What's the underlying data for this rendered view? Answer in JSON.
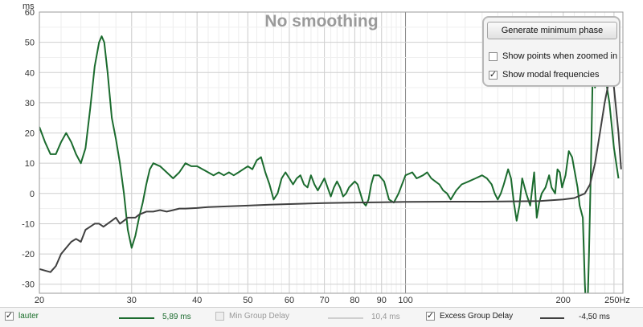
{
  "chart_data": {
    "type": "line",
    "title": "No smoothing",
    "ylabel": "ms",
    "xscale": "log",
    "xlim": [
      20,
      260
    ],
    "ylim": [
      -33,
      60
    ],
    "grid": true,
    "y_ticks": [
      60,
      50,
      40,
      30,
      20,
      10,
      0,
      -10,
      -20,
      -30
    ],
    "x_ticks": [
      {
        "value": 20,
        "label": "20"
      },
      {
        "value": 30,
        "label": "30"
      },
      {
        "value": 40,
        "label": "40"
      },
      {
        "value": 50,
        "label": "50"
      },
      {
        "value": 60,
        "label": "60"
      },
      {
        "value": 70,
        "label": "70"
      },
      {
        "value": 80,
        "label": "80"
      },
      {
        "value": 90,
        "label": "90"
      },
      {
        "value": 100,
        "label": "100"
      },
      {
        "value": 200,
        "label": "200"
      },
      {
        "value": 250,
        "label": "250Hz"
      }
    ],
    "series": [
      {
        "name": "lauter",
        "color": "#1b6b2e",
        "points": [
          [
            20,
            22
          ],
          [
            20.5,
            17
          ],
          [
            21,
            13
          ],
          [
            21.5,
            13
          ],
          [
            22,
            17
          ],
          [
            22.5,
            20
          ],
          [
            23,
            17
          ],
          [
            23.5,
            13
          ],
          [
            24,
            10
          ],
          [
            24.5,
            15
          ],
          [
            25,
            28
          ],
          [
            25.5,
            42
          ],
          [
            26,
            50
          ],
          [
            26.3,
            52
          ],
          [
            26.6,
            50
          ],
          [
            27,
            40
          ],
          [
            27.5,
            25
          ],
          [
            28,
            18
          ],
          [
            28.5,
            10
          ],
          [
            29,
            0
          ],
          [
            29.5,
            -12
          ],
          [
            30,
            -18
          ],
          [
            30.5,
            -14
          ],
          [
            31,
            -8
          ],
          [
            31.5,
            -3
          ],
          [
            32,
            3
          ],
          [
            32.5,
            8
          ],
          [
            33,
            10
          ],
          [
            34,
            9
          ],
          [
            35,
            7
          ],
          [
            36,
            5
          ],
          [
            37,
            7
          ],
          [
            38,
            10
          ],
          [
            39,
            9
          ],
          [
            40,
            9
          ],
          [
            41,
            8
          ],
          [
            42,
            7
          ],
          [
            43,
            6
          ],
          [
            44,
            7
          ],
          [
            45,
            6
          ],
          [
            46,
            7
          ],
          [
            47,
            6
          ],
          [
            48,
            7
          ],
          [
            49,
            8
          ],
          [
            50,
            9
          ],
          [
            51,
            8
          ],
          [
            52,
            11
          ],
          [
            53,
            12
          ],
          [
            54,
            7
          ],
          [
            55,
            3
          ],
          [
            56,
            -2
          ],
          [
            57,
            0
          ],
          [
            58,
            5
          ],
          [
            59,
            7
          ],
          [
            60,
            5
          ],
          [
            61,
            3
          ],
          [
            62,
            5
          ],
          [
            63,
            6
          ],
          [
            64,
            3
          ],
          [
            65,
            2
          ],
          [
            66,
            6
          ],
          [
            67,
            3
          ],
          [
            68,
            1
          ],
          [
            69,
            3
          ],
          [
            70,
            5
          ],
          [
            71,
            2
          ],
          [
            72,
            -1
          ],
          [
            73,
            2
          ],
          [
            74,
            4
          ],
          [
            75,
            2
          ],
          [
            76,
            -1
          ],
          [
            77,
            0
          ],
          [
            78,
            2
          ],
          [
            79,
            3
          ],
          [
            80,
            4
          ],
          [
            81,
            3
          ],
          [
            82,
            0
          ],
          [
            83,
            -3
          ],
          [
            84,
            -4
          ],
          [
            85,
            -2
          ],
          [
            86,
            3
          ],
          [
            87,
            6
          ],
          [
            88,
            6
          ],
          [
            89,
            6
          ],
          [
            90,
            5
          ],
          [
            91,
            4
          ],
          [
            92,
            1
          ],
          [
            93,
            -2
          ],
          [
            95,
            -3
          ],
          [
            97,
            0
          ],
          [
            100,
            6
          ],
          [
            103,
            7
          ],
          [
            105,
            5
          ],
          [
            108,
            6
          ],
          [
            110,
            7
          ],
          [
            112,
            5
          ],
          [
            114,
            4
          ],
          [
            116,
            3
          ],
          [
            118,
            1
          ],
          [
            120,
            0
          ],
          [
            122,
            -2
          ],
          [
            125,
            1
          ],
          [
            128,
            3
          ],
          [
            132,
            4
          ],
          [
            136,
            5
          ],
          [
            140,
            6
          ],
          [
            143,
            5
          ],
          [
            146,
            3
          ],
          [
            148,
            0
          ],
          [
            150,
            -2
          ],
          [
            152,
            0
          ],
          [
            154,
            3
          ],
          [
            157,
            8
          ],
          [
            159,
            5
          ],
          [
            161,
            -3
          ],
          [
            163,
            -9
          ],
          [
            165,
            -4
          ],
          [
            167,
            5
          ],
          [
            170,
            0
          ],
          [
            173,
            -4
          ],
          [
            176,
            7
          ],
          [
            178,
            -8
          ],
          [
            180,
            -3
          ],
          [
            182,
            0
          ],
          [
            185,
            2
          ],
          [
            188,
            6
          ],
          [
            190,
            2
          ],
          [
            193,
            0
          ],
          [
            195,
            8
          ],
          [
            197,
            7
          ],
          [
            199,
            2
          ],
          [
            202,
            6
          ],
          [
            205,
            14
          ],
          [
            208,
            12
          ],
          [
            210,
            8
          ],
          [
            213,
            2
          ],
          [
            215,
            -4
          ],
          [
            218,
            -8
          ],
          [
            220,
            -30
          ],
          [
            222,
            -45
          ],
          [
            224,
            -20
          ],
          [
            226,
            10
          ],
          [
            228,
            45
          ],
          [
            230,
            35
          ],
          [
            233,
            48
          ],
          [
            236,
            42
          ],
          [
            240,
            40
          ],
          [
            245,
            30
          ],
          [
            250,
            15
          ],
          [
            255,
            5
          ]
        ]
      },
      {
        "name": "Excess Group Delay",
        "color": "#404040",
        "points": [
          [
            20,
            -25
          ],
          [
            20.5,
            -25.5
          ],
          [
            21,
            -26
          ],
          [
            21.5,
            -24
          ],
          [
            22,
            -20
          ],
          [
            22.5,
            -18
          ],
          [
            23,
            -16
          ],
          [
            23.5,
            -15
          ],
          [
            24,
            -16
          ],
          [
            24.5,
            -12
          ],
          [
            25,
            -11
          ],
          [
            25.5,
            -10
          ],
          [
            26,
            -10
          ],
          [
            26.5,
            -11
          ],
          [
            27,
            -10
          ],
          [
            27.5,
            -9
          ],
          [
            28,
            -8
          ],
          [
            28.5,
            -10
          ],
          [
            29,
            -9
          ],
          [
            29.5,
            -8
          ],
          [
            30,
            -8
          ],
          [
            30.5,
            -8
          ],
          [
            31,
            -7
          ],
          [
            32,
            -6
          ],
          [
            33,
            -6
          ],
          [
            34,
            -5.5
          ],
          [
            35,
            -6
          ],
          [
            36,
            -5.5
          ],
          [
            37,
            -5
          ],
          [
            38,
            -5
          ],
          [
            40,
            -4.8
          ],
          [
            42,
            -4.5
          ],
          [
            45,
            -4.3
          ],
          [
            50,
            -4
          ],
          [
            55,
            -3.7
          ],
          [
            60,
            -3.5
          ],
          [
            70,
            -3.2
          ],
          [
            80,
            -3
          ],
          [
            90,
            -2.9
          ],
          [
            100,
            -2.8
          ],
          [
            120,
            -2.7
          ],
          [
            140,
            -2.7
          ],
          [
            160,
            -2.6
          ],
          [
            180,
            -2.5
          ],
          [
            200,
            -2
          ],
          [
            210,
            -1.5
          ],
          [
            220,
            0
          ],
          [
            225,
            3
          ],
          [
            230,
            10
          ],
          [
            235,
            20
          ],
          [
            240,
            30
          ],
          [
            245,
            38
          ],
          [
            248,
            40
          ],
          [
            250,
            35
          ],
          [
            255,
            20
          ],
          [
            258,
            8
          ]
        ]
      }
    ]
  },
  "controls": {
    "button_label": "Generate minimum phase",
    "option1_label": "Show points when zoomed in",
    "option1_checked": false,
    "option2_label": "Show modal frequencies",
    "option2_checked": true
  },
  "legend": [
    {
      "label": "lauter",
      "checked": true,
      "color": "#1b6b2e",
      "value": "5,89 ms"
    },
    {
      "label": "Min Group Delay",
      "checked": false,
      "color": "#cfcfcf",
      "value": "10,4 ms"
    },
    {
      "label": "Excess Group Delay",
      "checked": true,
      "color": "#404040",
      "value": "-4,50 ms"
    }
  ],
  "check_glyph": "✓"
}
